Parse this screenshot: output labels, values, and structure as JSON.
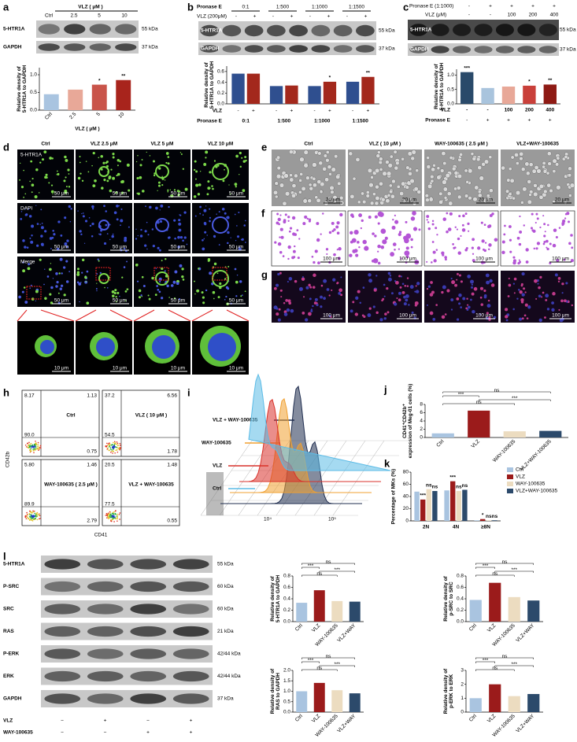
{
  "panel_letters": [
    "a",
    "b",
    "c",
    "d",
    "e",
    "f",
    "g",
    "h",
    "i",
    "j",
    "k",
    "l"
  ],
  "panels": {
    "a": {
      "blot_header": "VLZ ( μM )",
      "lanes": [
        "Ctrl",
        "2.5",
        "5",
        "10"
      ],
      "rows": [
        {
          "protein": "5-HTR1A",
          "size": "55 kDa"
        },
        {
          "protein": "GAPDH",
          "size": "37 kDa"
        }
      ]
    },
    "b": {
      "header": "Pronase E",
      "groups": [
        "0:1",
        "1:500",
        "1:1000",
        "1:1500"
      ],
      "lane_label": "VLZ (200μM)",
      "lanes": [
        "-",
        "+",
        "-",
        "+",
        "-",
        "+",
        "-",
        "+"
      ],
      "rows": [
        {
          "protein": "5-HTR1A",
          "size": "55 kDa"
        },
        {
          "protein": "GAPDH",
          "size": "37 kDa"
        }
      ]
    },
    "c": {
      "header": "Pronase E (1:1000)",
      "header_lanes": [
        "-",
        "+",
        "+",
        "+",
        "+"
      ],
      "lane_label": "VLZ (μM)",
      "lanes": [
        "-",
        "-",
        "100",
        "200",
        "400"
      ],
      "rows": [
        {
          "protein": "5-HTR1A",
          "size": "55 kDa"
        },
        {
          "protein": "GAPDH",
          "size": "37 kDa"
        }
      ]
    },
    "d": {
      "columns": [
        "Ctrl",
        "VLZ 2.5 μM",
        "VLZ 5 μM",
        "VLZ 10 μM"
      ],
      "rows": [
        "5-HTR1A",
        "DAPI",
        "Merge"
      ],
      "scale_bar": "50 μm",
      "zoom_scale_bar": "10 μm"
    },
    "e": {
      "columns": [
        "Ctrl",
        "VLZ ( 10 μM )",
        "WAY-100635 ( 2.5 μM )",
        "VLZ+WAY-100635"
      ],
      "scale_bar": "20 μm"
    },
    "f": {
      "scale_bar": "100 μm"
    },
    "g": {
      "scale_bar": "100 μm"
    },
    "h": {
      "y_axis": "CD42b",
      "x_axis": "CD41",
      "plots": [
        {
          "title": "Ctrl",
          "quadrants": [
            "8.17",
            "1.13",
            "90.0",
            "0.75"
          ]
        },
        {
          "title": "VLZ ( 10 μM )",
          "quadrants": [
            "37.2",
            "6.56",
            "54.5",
            "1.78"
          ]
        },
        {
          "title": "WAY-100635 ( 2.5 μM )",
          "quadrants": [
            "5.80",
            "1.46",
            "89.9",
            "2.79"
          ]
        },
        {
          "title": "VLZ + WAY-100635",
          "quadrants": [
            "20.5",
            "1.48",
            "77.5",
            "0.55"
          ]
        }
      ]
    },
    "i": {
      "labels": [
        {
          "text": "VLZ + WAY-100635",
          "color": "#1f2d4f"
        },
        {
          "text": "WAY-100635",
          "color": "#f0a030"
        },
        {
          "text": "VLZ",
          "color": "#d9322b"
        },
        {
          "text": "Ctrl",
          "color": "#5bbbe6"
        }
      ],
      "x_ticks": [
        "10⁴",
        "10⁵"
      ]
    },
    "l": {
      "rows": [
        {
          "protein": "5-HTR1A",
          "size": "55 kDa"
        },
        {
          "protein": "P-SRC",
          "size": "60 kDa"
        },
        {
          "protein": "SRC",
          "size": "60 kDa"
        },
        {
          "protein": "RAS",
          "size": "21 kDa"
        },
        {
          "protein": "P-ERK",
          "size": "42/44 kDa"
        },
        {
          "protein": "ERK",
          "size": "42/44 kDa"
        },
        {
          "protein": "GAPDH",
          "size": "37 kDa"
        }
      ],
      "lane_rows": [
        {
          "label": "VLZ",
          "values": [
            "−",
            "+",
            "−",
            "+"
          ]
        },
        {
          "label": "WAY-100635",
          "values": [
            "−",
            "−",
            "+",
            "+"
          ]
        }
      ]
    }
  },
  "chart_data": [
    {
      "type": "bar",
      "ylabel": [
        "Relative density of",
        "5-HTR1A to GAPDH"
      ],
      "xlabel": "VLZ ( μM )",
      "categories": [
        "Ctrl",
        "2.5",
        "5",
        "10"
      ],
      "values": [
        0.45,
        0.58,
        0.72,
        0.85
      ],
      "colors": [
        "#a9c4e0",
        "#e8a898",
        "#c9544a",
        "#a8241c"
      ],
      "ylim": [
        0,
        1.2
      ],
      "yticks": [
        {
          "value": 0,
          "label": "0.0"
        },
        {
          "value": 0.5,
          "label": "0.5"
        },
        {
          "value": 1,
          "label": "1.0"
        }
      ],
      "significance": [
        null,
        null,
        "*",
        "**"
      ]
    },
    {
      "type": "bar",
      "ylabel": [
        "Relative density of",
        "5-HTR1A to GAPDH"
      ],
      "categories": [
        "0:1",
        "1:500",
        "1:1000",
        "1:1500"
      ],
      "row_labels": [
        "VLZ",
        "Pronase E"
      ],
      "series": [
        {
          "name": "-",
          "color": "#2f4f8f",
          "values": [
            0.56,
            0.33,
            0.33,
            0.41
          ],
          "significance": [
            null,
            null,
            null,
            null
          ]
        },
        {
          "name": "+",
          "color": "#a3281c",
          "values": [
            0.56,
            0.34,
            0.41,
            0.5
          ],
          "significance": [
            null,
            null,
            "*",
            "**"
          ]
        }
      ],
      "ylim": [
        0,
        0.7
      ],
      "yticks": [
        {
          "value": 0,
          "label": "0.0"
        },
        {
          "value": 0.2,
          "label": "0.2"
        },
        {
          "value": 0.4,
          "label": "0.4"
        },
        {
          "value": 0.6,
          "label": "0.6"
        }
      ]
    },
    {
      "type": "bar",
      "ylabel": [
        "Relative density of",
        "5-HTR1A to GAPDH"
      ],
      "category_label": "VLZ",
      "categories": [
        "-",
        "-",
        "100",
        "200",
        "400"
      ],
      "category_rows": [
        {
          "label": "Pronase E",
          "values": [
            "-",
            "+",
            "+",
            "+",
            "+"
          ]
        }
      ],
      "values": [
        1.1,
        0.55,
        0.6,
        0.63,
        0.67
      ],
      "colors": [
        "#2a4a6a",
        "#a9c4dd",
        "#e8a898",
        "#c9403a",
        "#8e1a14"
      ],
      "ylim": [
        0,
        1.2
      ],
      "yticks": [
        {
          "value": 0,
          "label": "0.0"
        },
        {
          "value": 0.5,
          "label": "0.5"
        },
        {
          "value": 1,
          "label": "1.0"
        }
      ],
      "significance": [
        "***",
        null,
        null,
        "*",
        "**"
      ]
    },
    {
      "type": "bar",
      "ylabel": [
        "CD41⁺CD42b⁺",
        "expression of Meg-01 cells (%)"
      ],
      "categories": [
        "Ctrl",
        "VLZ",
        "WAY-100635",
        "VLZ+WAY-100635"
      ],
      "values": [
        1.0,
        6.5,
        1.5,
        1.6
      ],
      "colors": [
        "#a9c4e0",
        "#9b1b1b",
        "#ecdcc0",
        "#2c4a6b"
      ],
      "ylim": [
        0,
        8
      ],
      "yticks": [
        0,
        2,
        4,
        6,
        8
      ],
      "comparisons": [
        {
          "pair": [
            0,
            3
          ],
          "label": "ns"
        },
        {
          "pair": [
            0,
            1
          ],
          "label": "***"
        },
        {
          "pair": [
            1,
            3
          ],
          "label": "***"
        },
        {
          "pair": [
            0,
            2
          ],
          "label": "ns"
        }
      ]
    },
    {
      "type": "bar",
      "ylabel": [
        "Percentage of MKs (%)"
      ],
      "categories": [
        "2N",
        "4N",
        "≥8N"
      ],
      "legend": "right",
      "series": [
        {
          "name": "Ctrl",
          "color": "#a9c4e0",
          "values": [
            48,
            50,
            1
          ],
          "significance": [
            null,
            null,
            null
          ]
        },
        {
          "name": "VLZ",
          "color": "#9b1b1b",
          "values": [
            35,
            65,
            3
          ],
          "significance": [
            "***",
            "***",
            "*"
          ]
        },
        {
          "name": "WAY-100635",
          "color": "#ecdcc0",
          "values": [
            52,
            49,
            1
          ],
          "significance": [
            "ns",
            "ns",
            "ns"
          ]
        },
        {
          "name": "VLZ+WAY-100635",
          "color": "#2c4a6b",
          "values": [
            49,
            51,
            1
          ],
          "significance": [
            "ns",
            "ns",
            "ns"
          ]
        }
      ],
      "ylim": [
        0,
        80
      ],
      "yticks": [
        0,
        20,
        40,
        60,
        80
      ]
    },
    {
      "type": "bar",
      "ylabel": [
        "Relative density of",
        "5-HTR1A to GAPDH"
      ],
      "categories": [
        "Ctrl",
        "VLZ",
        "WAY-100635",
        "VLZ+WAY"
      ],
      "values": [
        0.33,
        0.55,
        0.36,
        0.35
      ],
      "colors": [
        "#a9c4e0",
        "#9b1b1b",
        "#ecdcc0",
        "#2c4a6b"
      ],
      "ylim": [
        0,
        0.8
      ],
      "yticks": [
        {
          "value": 0,
          "label": "0.0"
        },
        {
          "value": 0.2,
          "label": "0.2"
        },
        {
          "value": 0.4,
          "label": "0.4"
        },
        {
          "value": 0.6,
          "label": "0.6"
        },
        {
          "value": 0.8,
          "label": "0.8"
        }
      ],
      "comparisons": [
        {
          "pair": [
            0,
            3
          ],
          "label": "ns"
        },
        {
          "pair": [
            0,
            1
          ],
          "label": "***"
        },
        {
          "pair": [
            1,
            3
          ],
          "label": "***"
        },
        {
          "pair": [
            0,
            2
          ],
          "label": "ns"
        }
      ]
    },
    {
      "type": "bar",
      "ylabel": [
        "Relative density of",
        "p-SRC to SRC"
      ],
      "categories": [
        "Ctrl",
        "VLZ",
        "WAY-100635",
        "VLZ+WAY"
      ],
      "values": [
        0.38,
        0.68,
        0.43,
        0.37
      ],
      "colors": [
        "#a9c4e0",
        "#9b1b1b",
        "#ecdcc0",
        "#2c4a6b"
      ],
      "ylim": [
        0,
        0.8
      ],
      "yticks": [
        {
          "value": 0,
          "label": "0.0"
        },
        {
          "value": 0.2,
          "label": "0.2"
        },
        {
          "value": 0.4,
          "label": "0.4"
        },
        {
          "value": 0.6,
          "label": "0.6"
        },
        {
          "value": 0.8,
          "label": "0.8"
        }
      ],
      "comparisons": [
        {
          "pair": [
            0,
            3
          ],
          "label": "ns"
        },
        {
          "pair": [
            0,
            1
          ],
          "label": "***"
        },
        {
          "pair": [
            1,
            3
          ],
          "label": "***"
        },
        {
          "pair": [
            0,
            2
          ],
          "label": "ns"
        }
      ]
    },
    {
      "type": "bar",
      "ylabel": [
        "Relative density of",
        "RAS to GAPDH"
      ],
      "categories": [
        "Ctrl",
        "VLZ",
        "WAY-100635",
        "VLZ+WAY"
      ],
      "values": [
        1.0,
        1.4,
        1.05,
        0.9
      ],
      "colors": [
        "#a9c4e0",
        "#9b1b1b",
        "#ecdcc0",
        "#2c4a6b"
      ],
      "ylim": [
        0,
        2
      ],
      "yticks": [
        {
          "value": 0,
          "label": "0.0"
        },
        {
          "value": 0.5,
          "label": "0.5"
        },
        {
          "value": 1,
          "label": "1.0"
        },
        {
          "value": 1.5,
          "label": "1.5"
        },
        {
          "value": 2,
          "label": "2.0"
        }
      ],
      "comparisons": [
        {
          "pair": [
            0,
            3
          ],
          "label": "ns"
        },
        {
          "pair": [
            0,
            1
          ],
          "label": "***"
        },
        {
          "pair": [
            1,
            3
          ],
          "label": "***"
        },
        {
          "pair": [
            0,
            2
          ],
          "label": "ns"
        }
      ]
    },
    {
      "type": "bar",
      "ylabel": [
        "Relative density of",
        "p-ERK to ERK"
      ],
      "categories": [
        "Ctrl",
        "VLZ",
        "WAY-100635",
        "VLZ+WAY"
      ],
      "values": [
        1.0,
        2.0,
        1.15,
        1.3
      ],
      "colors": [
        "#a9c4e0",
        "#9b1b1b",
        "#ecdcc0",
        "#2c4a6b"
      ],
      "ylim": [
        0,
        3
      ],
      "yticks": [
        0,
        1,
        2,
        3
      ],
      "comparisons": [
        {
          "pair": [
            0,
            3
          ],
          "label": "ns"
        },
        {
          "pair": [
            0,
            1
          ],
          "label": "***"
        },
        {
          "pair": [
            1,
            3
          ],
          "label": "***"
        },
        {
          "pair": [
            0,
            2
          ],
          "label": "ns"
        }
      ]
    }
  ]
}
